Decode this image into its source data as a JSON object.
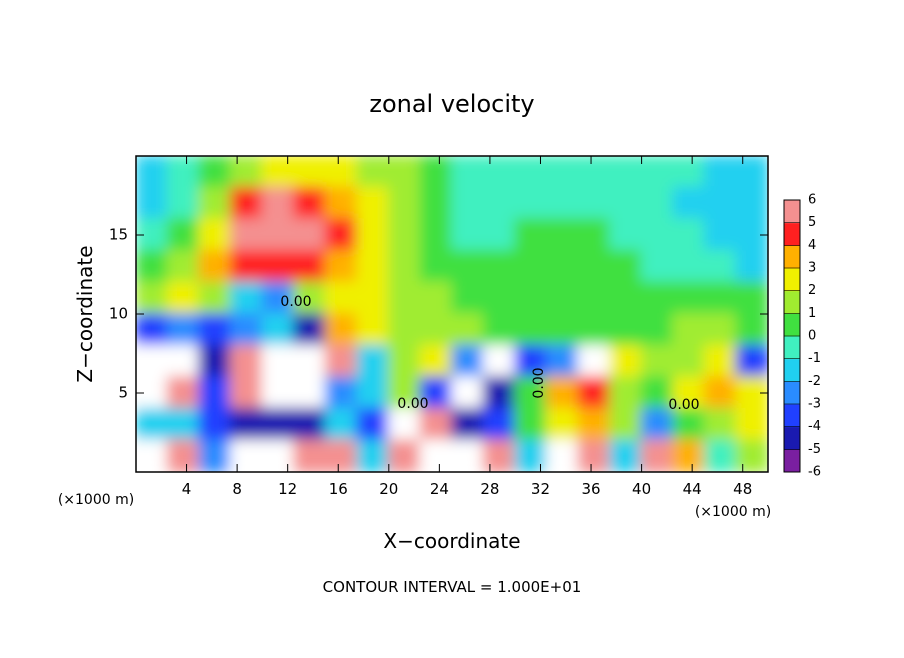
{
  "chart_data": {
    "type": "contour",
    "title": "zonal velocity",
    "xlabel": "X−coordinate",
    "ylabel": "Z−coordinate",
    "x_unit": "(×1000 m)",
    "footer": "CONTOUR INTERVAL = 1.000E+01",
    "contour_labels": [
      "0.00",
      "0.00",
      "0.00",
      "0.00"
    ],
    "xlim": [
      0,
      50
    ],
    "xticks": [
      4,
      8,
      12,
      16,
      20,
      24,
      28,
      32,
      36,
      40,
      44,
      48
    ],
    "ylim": [
      0,
      20
    ],
    "yticks": [
      5,
      10,
      15
    ],
    "clim": [
      -6,
      6
    ],
    "cticks": [
      -6,
      -5,
      -4,
      -3,
      -2,
      -1,
      0,
      1,
      2,
      3,
      4,
      5,
      6
    ],
    "colors": [
      "#7a1fa0",
      "#1a1ab0",
      "#2040ff",
      "#2a8cff",
      "#20d0f0",
      "#40f0c0",
      "#40e040",
      "#a0ec30",
      "#f0f000",
      "#ffb000",
      "#ff2020",
      "#f49090"
    ],
    "z": [
      [
        -2,
        -1,
        0,
        1,
        2,
        2,
        2,
        1,
        1,
        0,
        -1,
        -1,
        -1,
        -1,
        -1,
        -1,
        -1,
        -1,
        -2,
        -2
      ],
      [
        -2,
        -1,
        1,
        4,
        5,
        4,
        3,
        2,
        1,
        0,
        -1,
        -1,
        -1,
        -1,
        -1,
        -1,
        -1,
        -2,
        -2,
        -2
      ],
      [
        -1,
        0,
        2,
        5,
        5,
        5,
        4,
        2,
        1,
        0,
        -1,
        -1,
        0,
        0,
        0,
        -1,
        -1,
        -1,
        -2,
        -2
      ],
      [
        0,
        1,
        3,
        4,
        4,
        4,
        3,
        2,
        1,
        0,
        0,
        0,
        0,
        0,
        0,
        0,
        -1,
        -1,
        -1,
        -2
      ],
      [
        1,
        2,
        1,
        -2,
        -3,
        1,
        2,
        2,
        1,
        1,
        0,
        0,
        0,
        0,
        0,
        0,
        0,
        0,
        0,
        0
      ],
      [
        -4,
        -3,
        -4,
        -3,
        -2,
        -5,
        3,
        2,
        1,
        1,
        1,
        0,
        0,
        0,
        0,
        0,
        0,
        1,
        1,
        0
      ],
      [
        8,
        8,
        -5,
        6,
        8,
        8,
        6,
        -2,
        1,
        2,
        -3,
        8,
        -4,
        -3,
        8,
        2,
        1,
        1,
        2,
        -4
      ],
      [
        8,
        6,
        -4,
        6,
        8,
        8,
        -3,
        -2,
        1,
        -4,
        8,
        -5,
        0,
        3,
        4,
        1,
        0,
        2,
        3,
        2
      ],
      [
        -2,
        -2,
        -4,
        -5,
        -5,
        -5,
        -2,
        -4,
        8,
        6,
        -5,
        -4,
        0,
        2,
        3,
        1,
        -3,
        0,
        1,
        2
      ],
      [
        8,
        6,
        -3,
        8,
        8,
        6,
        6,
        -2,
        6,
        8,
        8,
        6,
        -2,
        8,
        6,
        -2,
        6,
        3,
        -1,
        1
      ]
    ]
  }
}
